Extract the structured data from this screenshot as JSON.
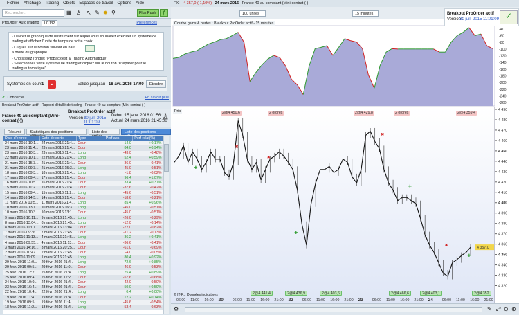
{
  "menu": [
    "Fichier",
    "Affichage",
    "Trading",
    "Objets",
    "Espaces de travail",
    "Options",
    "Aide"
  ],
  "toolbar": {
    "search_placeholder": "Recherche...",
    "flux_push": "Flux Push"
  },
  "proorder": {
    "title": "ProOrder AutoTrading",
    "account": "LCJ32",
    "preferences": "Préférences",
    "instr1": "- Ouvrez le graphique de l'instrument sur lequel vous souhaitez exécuter un système de trading et affichez l'unité de temps de votre choix",
    "instr2": "- Cliquez sur le bouton suivant en haut à droite du graphique",
    "instr3": "- Choisissez l'onglet \"ProBacktest & Trading Automatique\"",
    "instr4": "- Sélectionnez votre système de trading et cliquez sur le bouton \"Préparer pour le trading automatique\"",
    "systems_label": "Systèmes en cours :",
    "systems_count": "1",
    "valid_label": "Valide jusqu'au :",
    "valid_date": "18 avr. 2016 17:00",
    "extend": "Étendre",
    "connected": "Connecté",
    "learn_more": "En savoir plus"
  },
  "report": {
    "window_title": "Breakout ProOrder actif - Rapport détaillé de trading - France 40 au comptant (Mini-contrat (-)",
    "instrument": "France 40 au comptant (Mini-contrat (-))",
    "system": "Breakout ProOrder actif",
    "version_label": "Version :",
    "version": "30 juil. 2015 11:01:09",
    "start_label": "Début :",
    "start": "15 janv. 2016 01:56:13",
    "current_label": "Actuel :",
    "current": "24 mars 2016 21:45:00",
    "tabs": [
      "Résumé",
      "Statistiques des positions clôturées",
      "Liste des ordres",
      "Liste des positions clôturées"
    ],
    "columns": [
      "Date d'entrée",
      "Date de sortie",
      "Type",
      "Perf abs",
      "Perf relat(%)"
    ],
    "rows": [
      [
        "24 mars 2016 10:1...",
        "24 mars 2016 21:4...",
        "Court",
        "14,0",
        "+0,17%"
      ],
      [
        "23 mars 2016 11:4...",
        "23 mars 2016 21:4...",
        "Court",
        "84,0",
        "+0,94%"
      ],
      [
        "23 mars 2016 10:3...",
        "23 mars 2016 11:4...",
        "Long",
        "-43,0",
        "-0,48%"
      ],
      [
        "22 mars 2016 10:1...",
        "22 mars 2016 21:4...",
        "Long",
        "52,4",
        "+0,59%"
      ],
      [
        "21 mars 2016 15:3...",
        "21 mars 2016 21:4...",
        "Court",
        "-36,0",
        "-0,41%"
      ],
      [
        "21 mars 2016 09:3...",
        "21 mars 2016 15:3...",
        "Long",
        "-45,0",
        "-0,51%"
      ],
      [
        "18 mars 2016 09:3...",
        "18 mars 2016 21:4...",
        "Long",
        "-1,8",
        "-0,02%"
      ],
      [
        "17 mars 2016 09:4...",
        "17 mars 2016 21:4...",
        "Court",
        "96,4",
        "+1,07%"
      ],
      [
        "16 mars 2016 10:5...",
        "16 mars 2016 21:4...",
        "Court",
        "33,4",
        "+0,37%"
      ],
      [
        "15 mars 2016 11:2...",
        "15 mars 2016 21:4...",
        "Court",
        "-37,6",
        "-0,42%"
      ],
      [
        "15 mars 2016 09:4...",
        "15 mars 2016 11:2...",
        "Long",
        "-45,6",
        "-0,51%"
      ],
      [
        "14 mars 2016 14:5...",
        "14 mars 2016 21:4...",
        "Court",
        "-18,6",
        "-0,21%"
      ],
      [
        "11 mars 2016 10:5...",
        "11 mars 2016 21:4...",
        "Long",
        "85,4",
        "+0,96%"
      ],
      [
        "10 mars 2016 13:1...",
        "10 mars 2016 16:3...",
        "Long",
        "-45,0",
        "-0,51%"
      ],
      [
        "10 mars 2016 10:3...",
        "10 mars 2016 13:1...",
        "Court",
        "-45,0",
        "-0,51%"
      ],
      [
        "9 mars 2016 10:11...",
        "9 mars 2016 21:45...",
        "Long",
        "-26,0",
        "-0,29%"
      ],
      [
        "8 mars 2016 13:04...",
        "8 mars 2016 21:45...",
        "Long",
        "-12,0",
        "-0,14%"
      ],
      [
        "8 mars 2016 11:07...",
        "8 mars 2016 13:04...",
        "Court",
        "-72,0",
        "-0,82%"
      ],
      [
        "7 mars 2016 09:36...",
        "7 mars 2016 21:45...",
        "Court",
        "-11,2",
        "-0,13%"
      ],
      [
        "4 mars 2016 11:13...",
        "4 mars 2016 21:45...",
        "Long",
        "36,2",
        "+0,41%"
      ],
      [
        "4 mars 2016 09:55...",
        "4 mars 2016 11:13...",
        "Court",
        "-36,6",
        "-0,41%"
      ],
      [
        "3 mars 2016 14:16...",
        "3 mars 2016 20:25...",
        "Court",
        "-61,0",
        "-0,69%"
      ],
      [
        "2 mars 2016 10:47...",
        "2 mars 2016 21:45...",
        "Court",
        "-4,0",
        "-0,05%"
      ],
      [
        "1 mars 2016 11:09...",
        "1 mars 2016 21:45...",
        "Long",
        "80,4",
        "+0,92%"
      ],
      [
        "29 févr. 2016 11:0...",
        "29 févr. 2016 21:4...",
        "Long",
        "72,6",
        "+0,85%"
      ],
      [
        "29 févr. 2016 09:5...",
        "29 févr. 2016 11:0...",
        "Court",
        "-46,0",
        "-0,53%"
      ],
      [
        "25 févr. 2016 12:2...",
        "25 févr. 2016 21:4...",
        "Long",
        "75,4",
        "+0,89%"
      ],
      [
        "25 févr. 2016 09:4...",
        "25 févr. 2016 12:2...",
        "Court",
        "-57,6",
        "-0,68%"
      ],
      [
        "24 févr. 2016 10:0...",
        "24 févr. 2016 21:4...",
        "Court",
        "-42,0",
        "-0,50%"
      ],
      [
        "23 févr. 2016 16:4...",
        "23 févr. 2016 21:4...",
        "Court",
        "50,0",
        "+0,59%"
      ],
      [
        "22 févr. 2016 10:4...",
        "22 févr. 2016 21:4...",
        "Long",
        "0,4",
        "+0,00%"
      ],
      [
        "19 févr. 2016 11:4...",
        "19 févr. 2016 21:4...",
        "Court",
        "12,2",
        "+0,14%"
      ],
      [
        "19 févr. 2016 09:5...",
        "19 févr. 2016 11:4...",
        "Long",
        "-45,6",
        "-0,54%"
      ],
      [
        "18 févr. 2016 11:2...",
        "18 févr. 2016 21:4...",
        "Long",
        "-53,4",
        "-0,63%"
      ]
    ]
  },
  "chart": {
    "ticker": "FXI",
    "price": "4 357,0 (-1,10%)",
    "date": "24 mars 2016",
    "instrument": "France 40 au comptant (Mini-contrat (-)",
    "units": "100 unités",
    "timeframe": "15 minutes",
    "system": "Breakout ProOrder actif",
    "version_label": "Version :",
    "version": "30 juil. 2015 11:01:09",
    "equity_title": "Courbe gains & pertes : Breakout ProOrder actif - 15 minutes",
    "price_label": "Prix",
    "copyright": "© IT-F...",
    "disclaimer": "Données indicatives",
    "top_orders": [
      "2@4 450,6",
      "2 ordres",
      "2@4 429,8",
      "2 ordres",
      "2@4 359,4"
    ],
    "bottom_orders": [
      "2@4 441,4",
      "2@4 436,9",
      "2@4 403,6",
      "2@4 466,6",
      "2@4 403,1",
      "2@4 352"
    ],
    "last_price": "4 357,0",
    "colors": {
      "equity_fill": "#a9aad8",
      "gain": "#2e9a2e",
      "loss": "#d02020"
    }
  },
  "chart_data": [
    {
      "type": "area",
      "title": "Courbe gains & pertes : Breakout ProOrder actif - 15 minutes",
      "ylim": [
        -270,
        -30
      ],
      "yticks": [
        "-40",
        "-60",
        "-80",
        "-100",
        "-120",
        "-140",
        "-160",
        "-180",
        "-200",
        "-220",
        "-240",
        "-260"
      ],
      "values": [
        -128,
        -125,
        -115,
        -109,
        -105,
        -95,
        -85,
        -79,
        -72,
        -69,
        -60,
        -50,
        -80,
        -197,
        -170,
        -148,
        -130,
        -119,
        -125,
        -150,
        -190,
        -207,
        -236,
        -150,
        -99,
        -95,
        -90,
        -119,
        -95,
        -69,
        -75,
        -79,
        -99,
        -177,
        -217,
        -148,
        -109,
        -99,
        -100,
        -100,
        -100,
        -100,
        -100,
        -100,
        -100,
        -109,
        -109,
        -79,
        -60,
        -50,
        -36,
        -60,
        -55,
        -90,
        -99
      ]
    },
    {
      "type": "line",
      "ylim": [
        4315,
        4492
      ],
      "yticks": [
        "4 490",
        "4 480",
        "4 470",
        "4 460",
        "4 450",
        "4 440",
        "4 430",
        "4 420",
        "4 410",
        "4 400",
        "4 390",
        "4 380",
        "4 370",
        "4 360",
        "4 350",
        "4 340",
        "4 330",
        "4 320"
      ],
      "xticks": [
        "06:00",
        "11:00",
        "16:00",
        "20",
        "06:00",
        "11:00",
        "16:00",
        "21:00",
        "22",
        "06:00",
        "11:00",
        "16:00",
        "21:00",
        "23",
        "06:00",
        "11:00",
        "16:00",
        "21:00",
        "24",
        "06:00",
        "11:00",
        "16:00",
        "21:00"
      ],
      "values": [
        4439,
        4445,
        4455,
        4439,
        4449,
        4442,
        4432,
        4439,
        4449,
        4442,
        4442,
        4429,
        4425,
        4439,
        4479,
        4465,
        4442,
        4432,
        4439,
        4422,
        4432,
        4442,
        4445,
        4449,
        4445,
        4439,
        4432,
        4412,
        4379,
        4359,
        4399,
        4419,
        4432,
        4432,
        4435,
        4429,
        4432,
        4442,
        4439,
        4425,
        4419,
        4432,
        4465,
        4469,
        4459,
        4452,
        4432,
        4419,
        4412,
        4402,
        4405,
        4405,
        4402,
        4399,
        4385,
        4369,
        4359,
        4352,
        4342,
        4332,
        4329,
        4342,
        4345,
        4349,
        4352,
        4357
      ]
    }
  ]
}
